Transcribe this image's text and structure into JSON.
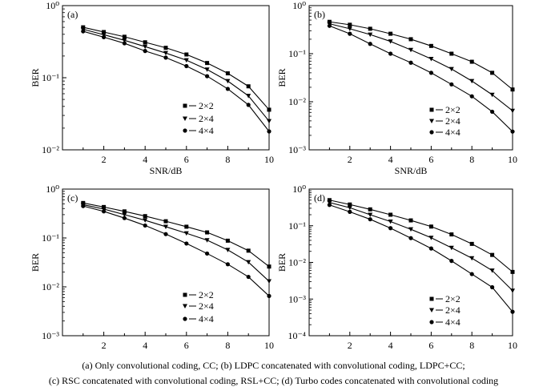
{
  "caption": {
    "line1": "(a)  Only convolutional coding, CC; (b) LDPC concatenated with convolutional coding, LDPC+CC;",
    "line2": "(c) RSC concatenated with convolutional coding, RSL+CC; (d) Turbo codes concatenated with convolutional coding"
  },
  "chart_data": [
    {
      "type": "line",
      "panel_label": "(a)",
      "xlabel": "SNR/dB",
      "ylabel": "BER",
      "xlim": [
        0,
        10
      ],
      "x_ticks": [
        2,
        4,
        6,
        8,
        10
      ],
      "y_scale": "log",
      "ylim_exp": [
        -2,
        0
      ],
      "legend_position": "center-right",
      "x": [
        1,
        2,
        3,
        4,
        5,
        6,
        7,
        8,
        9,
        10
      ],
      "series": [
        {
          "name": "2×2",
          "marker": "square",
          "values": [
            0.5,
            0.43,
            0.37,
            0.31,
            0.26,
            0.21,
            0.16,
            0.115,
            0.076,
            0.036
          ]
        },
        {
          "name": "2×4",
          "marker": "triangle",
          "values": [
            0.47,
            0.395,
            0.33,
            0.27,
            0.22,
            0.175,
            0.13,
            0.09,
            0.056,
            0.025
          ]
        },
        {
          "name": "4×4",
          "marker": "circle",
          "values": [
            0.44,
            0.365,
            0.3,
            0.235,
            0.19,
            0.145,
            0.105,
            0.07,
            0.042,
            0.018
          ]
        }
      ]
    },
    {
      "type": "line",
      "panel_label": "(b)",
      "xlabel": "SNR/dB",
      "ylabel": "BER",
      "xlim": [
        0,
        10
      ],
      "x_ticks": [
        2,
        4,
        6,
        8,
        10
      ],
      "y_scale": "log",
      "ylim_exp": [
        -3,
        0
      ],
      "legend_position": "center-right",
      "x": [
        1,
        2,
        3,
        4,
        5,
        6,
        7,
        8,
        9,
        10
      ],
      "series": [
        {
          "name": "2×2",
          "marker": "square",
          "values": [
            0.46,
            0.4,
            0.33,
            0.26,
            0.2,
            0.145,
            0.1,
            0.068,
            0.04,
            0.018
          ]
        },
        {
          "name": "2×4",
          "marker": "triangle",
          "values": [
            0.42,
            0.33,
            0.25,
            0.18,
            0.12,
            0.078,
            0.048,
            0.027,
            0.014,
            0.0065
          ]
        },
        {
          "name": "4×4",
          "marker": "circle",
          "values": [
            0.38,
            0.26,
            0.16,
            0.1,
            0.065,
            0.04,
            0.023,
            0.013,
            0.0062,
            0.0024
          ]
        }
      ]
    },
    {
      "type": "line",
      "panel_label": "(c)",
      "xlabel": "SNR/dB",
      "ylabel": "BER",
      "xlim": [
        0,
        10
      ],
      "x_ticks": [
        2,
        4,
        6,
        8,
        10
      ],
      "y_scale": "log",
      "ylim_exp": [
        -3,
        0
      ],
      "legend_position": "center-right",
      "x": [
        1,
        2,
        3,
        4,
        5,
        6,
        7,
        8,
        9,
        10
      ],
      "series": [
        {
          "name": "2×2",
          "marker": "square",
          "values": [
            0.52,
            0.43,
            0.35,
            0.28,
            0.22,
            0.17,
            0.13,
            0.088,
            0.055,
            0.026
          ]
        },
        {
          "name": "2×4",
          "marker": "triangle",
          "values": [
            0.48,
            0.39,
            0.3,
            0.23,
            0.17,
            0.125,
            0.09,
            0.057,
            0.032,
            0.013
          ]
        },
        {
          "name": "4×4",
          "marker": "circle",
          "values": [
            0.45,
            0.35,
            0.255,
            0.18,
            0.12,
            0.077,
            0.048,
            0.029,
            0.016,
            0.0065
          ]
        }
      ]
    },
    {
      "type": "line",
      "panel_label": "(d)",
      "xlabel": "SNR/dB",
      "ylabel": "BER",
      "xlim": [
        0,
        10
      ],
      "x_ticks": [
        2,
        4,
        6,
        8,
        10
      ],
      "y_scale": "log",
      "ylim_exp": [
        -4,
        0
      ],
      "legend_position": "center-right",
      "x": [
        1,
        2,
        3,
        4,
        5,
        6,
        7,
        8,
        9,
        10
      ],
      "series": [
        {
          "name": "2×2",
          "marker": "square",
          "values": [
            0.5,
            0.38,
            0.28,
            0.2,
            0.14,
            0.095,
            0.058,
            0.032,
            0.016,
            0.0055
          ]
        },
        {
          "name": "2×4",
          "marker": "triangle",
          "values": [
            0.43,
            0.31,
            0.2,
            0.13,
            0.08,
            0.047,
            0.025,
            0.013,
            0.006,
            0.0017
          ]
        },
        {
          "name": "4×4",
          "marker": "circle",
          "values": [
            0.37,
            0.24,
            0.15,
            0.086,
            0.046,
            0.024,
            0.011,
            0.0048,
            0.0021,
            0.00045
          ]
        }
      ]
    }
  ]
}
